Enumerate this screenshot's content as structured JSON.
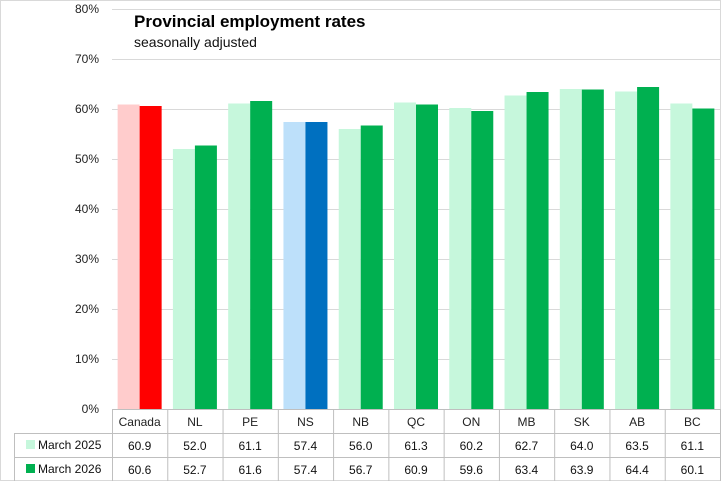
{
  "chart_data": {
    "type": "bar",
    "title": "Provincial employment rates",
    "subtitle": "seasonally adjusted",
    "categories": [
      "Canada",
      "NL",
      "PE",
      "NS",
      "NB",
      "QC",
      "ON",
      "MB",
      "SK",
      "AB",
      "BC"
    ],
    "series": [
      {
        "name": "March 2025",
        "color": "#c6f7dc",
        "values": [
          60.9,
          52.0,
          61.1,
          57.4,
          56.0,
          61.3,
          60.2,
          62.7,
          64.0,
          63.5,
          61.1
        ],
        "display": [
          "60.9",
          "52.0",
          "61.1",
          "57.4",
          "56.0",
          "61.3",
          "60.2",
          "62.7",
          "64.0",
          "63.5",
          "61.1"
        ]
      },
      {
        "name": "March 2026",
        "color": "#00b050",
        "values": [
          60.6,
          52.7,
          61.6,
          57.4,
          56.7,
          60.9,
          59.6,
          63.4,
          63.9,
          64.4,
          60.1
        ],
        "display": [
          "60.6",
          "52.7",
          "61.6",
          "57.4",
          "56.7",
          "60.9",
          "59.6",
          "63.4",
          "63.9",
          "64.4",
          "60.1"
        ]
      }
    ],
    "highlight_colors": {
      "Canada": [
        "#ffcccc",
        "#ff0000"
      ],
      "NS": [
        "#bde0fa",
        "#0070c0"
      ]
    },
    "ylim": [
      0,
      80
    ],
    "yticks": [
      0,
      10,
      20,
      30,
      40,
      50,
      60,
      70,
      80
    ],
    "ytick_labels": [
      "0%",
      "10%",
      "20%",
      "30%",
      "40%",
      "50%",
      "60%",
      "70%",
      "80%"
    ],
    "grid": true,
    "legend": "data-table"
  }
}
